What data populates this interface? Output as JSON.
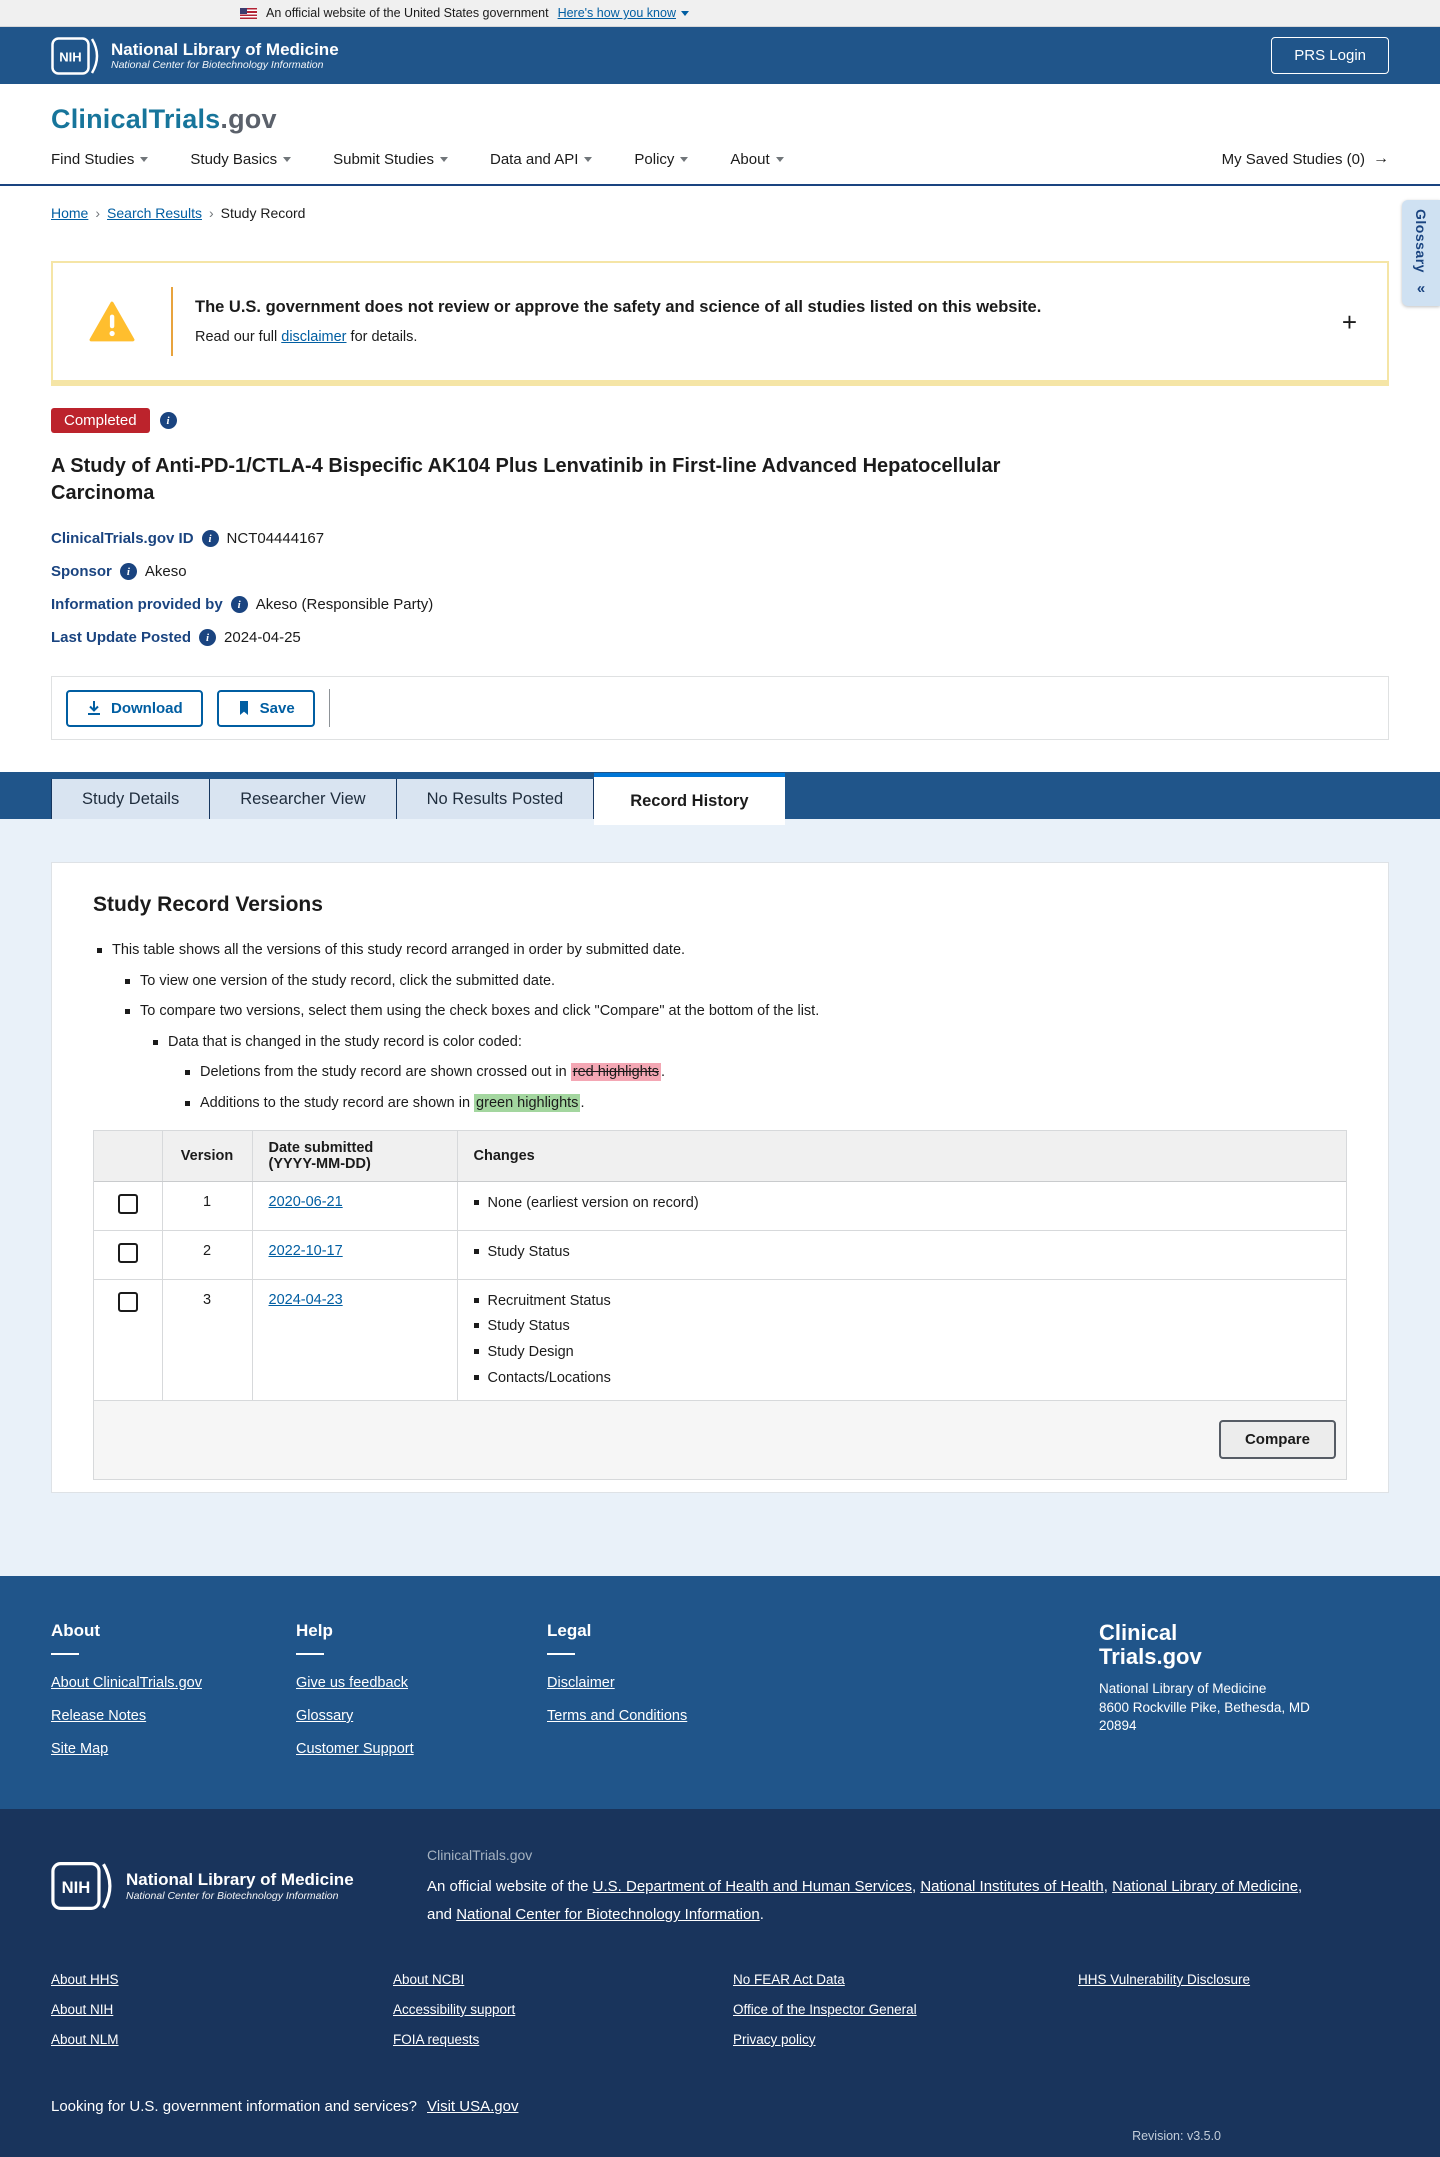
{
  "gov_banner": {
    "text": "An official website of the United States government",
    "link": "Here's how you know"
  },
  "nih_header": {
    "logo_acronym": "NIH",
    "org_name": "National Library of Medicine",
    "org_subtitle": "National Center for Biotechnology Information",
    "login_button": "PRS Login"
  },
  "site_header": {
    "logo_primary": "ClinicalTrials",
    "logo_suffix": ".gov",
    "nav_items": [
      "Find Studies",
      "Study Basics",
      "Submit Studies",
      "Data and API",
      "Policy",
      "About"
    ],
    "saved_studies": "My Saved Studies (0)",
    "saved_studies_arrow": "→"
  },
  "breadcrumb": {
    "home": "Home",
    "search_results": "Search Results",
    "current": "Study Record",
    "separator": "›"
  },
  "glossary_tab": {
    "label": "Glossary",
    "collapse_icon": "«"
  },
  "warning_banner": {
    "headline": "The U.S. government does not review or approve the safety and science of all studies listed on this website.",
    "body_pre": "Read our full ",
    "body_link": "disclaimer",
    "body_post": " for details.",
    "expand_icon": "+"
  },
  "study": {
    "status_badge": "Completed",
    "title": "A Study of Anti-PD-1/CTLA-4 Bispecific AK104 Plus Lenvatinib in First-line Advanced Hepatocellular Carcinoma",
    "meta": [
      {
        "label": "ClinicalTrials.gov ID",
        "value": "NCT04444167"
      },
      {
        "label": "Sponsor",
        "value": "Akeso"
      },
      {
        "label": "Information provided by",
        "value": "Akeso (Responsible Party)"
      },
      {
        "label": "Last Update Posted",
        "value": "2024-04-25"
      }
    ]
  },
  "actions": {
    "download": "Download",
    "save": "Save"
  },
  "tabs": {
    "items": [
      "Study Details",
      "Researcher View",
      "No Results Posted",
      "Record History"
    ],
    "active": "Record History"
  },
  "record_history": {
    "heading": "Study Record Versions",
    "intro": {
      "b1": "This table shows all the versions of this study record arranged in order by submitted date.",
      "b2": "To view one version of the study record, click the submitted date.",
      "b3": "To compare two versions, select them using the check boxes and click \"Compare\" at the bottom of the list.",
      "b4": "Data that is changed in the study record is color coded:",
      "b5_pre": "Deletions from the study record are shown crossed out in ",
      "b5_highlight": "red highlights",
      "b5_post": ".",
      "b6_pre": "Additions to the study record are shown in ",
      "b6_highlight": "green highlights",
      "b6_post": "."
    },
    "table": {
      "headers": {
        "version": "Version",
        "date_line1": "Date submitted",
        "date_line2": "(YYYY-MM-DD)",
        "changes": "Changes"
      },
      "rows": [
        {
          "version": "1",
          "date": "2020-06-21",
          "changes": [
            "None (earliest version on record)"
          ]
        },
        {
          "version": "2",
          "date": "2022-10-17",
          "changes": [
            "Study Status"
          ]
        },
        {
          "version": "3",
          "date": "2024-04-23",
          "changes": [
            "Recruitment Status",
            "Study Status",
            "Study Design",
            "Contacts/Locations"
          ]
        }
      ]
    },
    "compare_button": "Compare"
  },
  "footer": {
    "columns": [
      {
        "heading": "About",
        "links": [
          "About ClinicalTrials.gov",
          "Release Notes",
          "Site Map"
        ]
      },
      {
        "heading": "Help",
        "links": [
          "Give us feedback",
          "Glossary",
          "Customer Support"
        ]
      },
      {
        "heading": "Legal",
        "links": [
          "Disclaimer",
          "Terms and Conditions"
        ]
      }
    ],
    "logo_line1": "Clinical",
    "logo_line2": "Trials.gov",
    "address": [
      "National Library of Medicine",
      "8600 Rockville Pike, Bethesda, MD",
      "20894"
    ]
  },
  "subfooter": {
    "logo_acronym": "NIH",
    "org_name": "National Library of Medicine",
    "org_subtitle": "National Center for Biotechnology Information",
    "site_name": "ClinicalTrials.gov",
    "official": {
      "pre": "An official website of the ",
      "link1": "U.S. Department of Health and Human Services",
      "sep1": ", ",
      "link2": "National Institutes of Health",
      "sep2": ", ",
      "link3": "National Library of Medicine",
      "sep3": ",",
      "line2_pre": "and ",
      "link4": "National Center for Biotechnology Information",
      "line2_post": "."
    },
    "link_columns": [
      [
        "About HHS",
        "About NIH",
        "About NLM"
      ],
      [
        "About NCBI",
        "Accessibility support",
        "FOIA requests"
      ],
      [
        "No FEAR Act Data",
        "Office of the Inspector General",
        "Privacy policy"
      ],
      [
        "HHS Vulnerability Disclosure"
      ]
    ],
    "usa_gov_text": "Looking for U.S. government information and services?",
    "usa_gov_link": "Visit USA.gov",
    "revision": "Revision: v3.5.0"
  },
  "colors": {
    "header_blue": "#20558a",
    "subfooter_navy": "#19345c",
    "link_blue": "#005ea2",
    "status_red": "#bc232c",
    "active_tab_accent": "#0076d6",
    "warning_amber": "#ffbe2e",
    "deletion_highlight": "#f4a7b4",
    "addition_highlight": "#a3d69f"
  }
}
